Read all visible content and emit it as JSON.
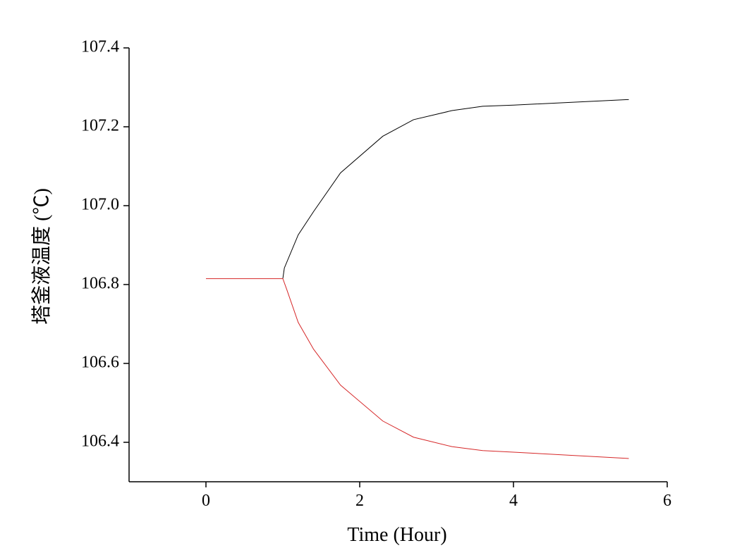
{
  "chart_data": {
    "type": "line",
    "x_label": "Time (Hour)",
    "y_label": "塔釜液温度 (℃)",
    "xlim": [
      -1,
      6
    ],
    "xticks": [
      0,
      2,
      4,
      6
    ],
    "ylim": [
      106.3,
      107.4
    ],
    "yticks": [
      {
        "value": 106.4,
        "label": "106.4"
      },
      {
        "value": 106.6,
        "label": "106.6"
      },
      {
        "value": 106.8,
        "label": "106.8"
      },
      {
        "value": 107,
        "label": "107.0"
      },
      {
        "value": 107.2,
        "label": "107.2"
      },
      107.4
    ],
    "series": [
      {
        "color": "#000000",
        "x": [
          1.0,
          1.02,
          1.2,
          1.4,
          1.75,
          2.3,
          2.7,
          3.2,
          3.6,
          4.0,
          5.5
        ],
        "values": [
          106.815,
          106.842,
          106.926,
          106.985,
          107.083,
          107.176,
          107.218,
          107.241,
          107.252,
          107.255,
          107.269
        ]
      },
      {
        "color": "#d62728",
        "x": [
          0,
          1.0,
          1.05,
          1.2,
          1.4,
          1.75,
          2.3,
          2.7,
          3.2,
          3.6,
          4.0,
          5.5
        ],
        "values": [
          106.815,
          106.815,
          106.788,
          106.704,
          106.636,
          106.545,
          106.454,
          106.413,
          106.389,
          106.379,
          106.375,
          106.359
        ]
      }
    ]
  }
}
